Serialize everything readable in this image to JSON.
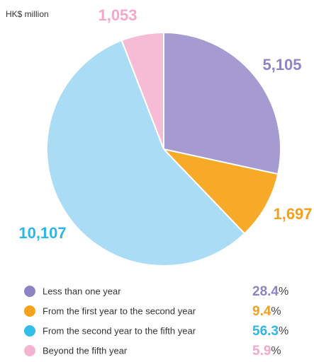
{
  "chart_data": {
    "type": "pie",
    "subtitle": "HK$ million",
    "categories": [
      "Less than one year",
      "From the first year to the second year",
      "From the second year to the fifth year",
      "Beyond the fifth year"
    ],
    "values": [
      5105,
      1697,
      10107,
      1053
    ],
    "value_labels": [
      "5,105",
      "1,697",
      "10,107",
      "1,053"
    ],
    "percentages": [
      "28.4%",
      "9.4%",
      "56.3%",
      "5.9%"
    ],
    "colors": [
      "#a69bd0",
      "#f7a928",
      "#aadcf5",
      "#f6bcd6"
    ],
    "label_colors": [
      "#8e84c4",
      "#f2a01f",
      "#2db6e8",
      "#f2a8ca"
    ],
    "legend_colors": [
      "#8e84c4",
      "#f5a21e",
      "#35bdea",
      "#f4b3d0"
    ]
  }
}
